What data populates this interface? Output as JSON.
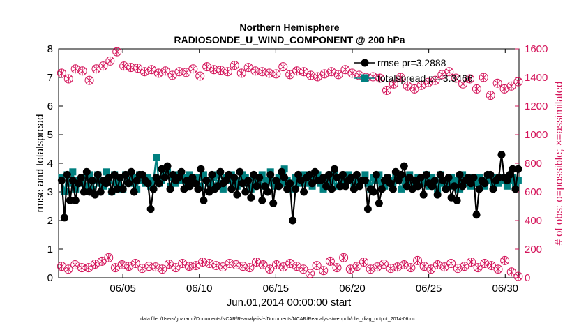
{
  "colors": {
    "rmse": "#000000",
    "spread": "#008080",
    "obs": "#d4145a"
  },
  "footer": "data file: /Users/gharamti/Documents/NCAR/Reanalysis/~/Documents/NCAR/Reanalysis/webpub/obs_diag_output_2014-06.nc",
  "chart_data": {
    "type": "line",
    "title": "Northern Hemisphere",
    "subtitle": "RADIOSONDE_U_WIND_COMPONENT @ 200 hPa",
    "xlabel": "Jun.01,2014 00:00:00 start",
    "ylabel": "rmse and totalspread",
    "y2label": "# of obs: o=possible; ×=assimilated",
    "xlim": [
      0.8,
      30.9
    ],
    "ylim": [
      0,
      8
    ],
    "y2lim": [
      0,
      1600
    ],
    "x_ticks": [
      5,
      10,
      15,
      20,
      25,
      30
    ],
    "x_tick_labels": [
      "06/05",
      "06/10",
      "06/15",
      "06/20",
      "06/25",
      "06/30"
    ],
    "y_ticks": [
      0,
      1,
      2,
      3,
      4,
      5,
      6,
      7,
      8
    ],
    "y2_ticks": [
      0,
      200,
      400,
      600,
      800,
      1000,
      1200,
      1400,
      1600
    ],
    "legend_position": "top-right",
    "series": [
      {
        "name": "rmse pr=3.2888",
        "axis": "left",
        "marker": "circle",
        "values": [
          3.4,
          2.1,
          3.6,
          2.7,
          3.4,
          2.7,
          3.3,
          3.5,
          3.0,
          3.7,
          3.0,
          3.4,
          2.9,
          3.6,
          3.0,
          3.4,
          3.3,
          3.5,
          3.0,
          3.6,
          3.1,
          3.5,
          3.1,
          3.6,
          3.3,
          3.7,
          3.0,
          3.4,
          3.6,
          3.6,
          3.4,
          3.3,
          2.4,
          3.1,
          3.5,
          3.3,
          3.8,
          3.5,
          3.9,
          3.1,
          3.6,
          3.4,
          3.5,
          3.7,
          3.1,
          3.4,
          3.2,
          3.5,
          3.3,
          3.1,
          3.8,
          2.7,
          3.4,
          3.0,
          3.6,
          3.1,
          3.2,
          3.7,
          3.3,
          3.4,
          3.6,
          3.1,
          3.5,
          2.9,
          3.7,
          3.3,
          3.0,
          3.4,
          2.8,
          3.6,
          3.2,
          3.5,
          2.7,
          3.2,
          3.0,
          3.6,
          2.6,
          3.4,
          3.2,
          3.7,
          3.5,
          3.1,
          3.3,
          2.0,
          3.1,
          3.6,
          3.4,
          3.0,
          3.5,
          3.6,
          3.3,
          3.7,
          3.4,
          3.4,
          3.5,
          3.2,
          3.6,
          3.1,
          3.8,
          3.5,
          3.2,
          3.6,
          3.2,
          3.4,
          3.5,
          3.1,
          3.6,
          3.2,
          3.4,
          3.4,
          2.4,
          3.1,
          3.0,
          3.6,
          2.6,
          3.1,
          3.4,
          3.5,
          3.3,
          3.1,
          3.7,
          3.4,
          3.6,
          3.9,
          3.2,
          3.5,
          3.1,
          3.4,
          3.2,
          3.5,
          2.9,
          3.6,
          3.3,
          3.2,
          3.4,
          2.9,
          3.6,
          3.4,
          3.1,
          3.5,
          2.8,
          3.2,
          2.7,
          3.6,
          3.2,
          3.4,
          3.5,
          3.3,
          3.5,
          2.2,
          3.1,
          3.4,
          3.3,
          3.6,
          3.6,
          3.1,
          3.4,
          3.5,
          4.3,
          3.5,
          3.4,
          3.6,
          3.8,
          3.1,
          3.8
        ]
      },
      {
        "name": "totalspread pr=3.3466",
        "axis": "left",
        "marker": "square",
        "values": [
          3.5,
          3.0,
          3.6,
          3.3,
          3.7,
          3.1,
          3.4,
          3.3,
          3.5,
          3.2,
          3.6,
          3.1,
          3.4,
          3.6,
          3.3,
          3.2,
          3.7,
          3.4,
          3.0,
          3.6,
          3.3,
          3.5,
          3.1,
          3.6,
          3.4,
          3.3,
          3.5,
          3.1,
          3.6,
          3.4,
          3.3,
          3.5,
          3.2,
          3.4,
          4.2,
          3.3,
          3.4,
          3.6,
          3.7,
          3.2,
          3.5,
          3.3,
          3.6,
          3.4,
          3.5,
          3.2,
          3.6,
          3.3,
          3.4,
          3.5,
          3.2,
          3.6,
          3.4,
          3.3,
          3.5,
          3.2,
          3.6,
          3.3,
          3.1,
          3.5,
          3.4,
          3.6,
          3.3,
          3.2,
          3.4,
          3.6,
          3.5,
          3.3,
          3.1,
          3.5,
          3.4,
          3.3,
          3.6,
          3.2,
          3.4,
          3.7,
          3.3,
          3.2,
          3.5,
          3.3,
          3.8,
          3.4,
          3.3,
          3.1,
          3.5,
          3.3,
          3.4,
          3.6,
          3.3,
          3.5,
          3.2,
          3.4,
          3.6,
          3.3,
          3.1,
          3.5,
          3.3,
          3.4,
          3.6,
          3.2,
          3.5,
          3.4,
          3.3,
          3.6,
          3.4,
          3.2,
          3.5,
          3.3,
          3.4,
          3.6,
          3.3,
          3.1,
          3.5,
          3.4,
          3.6,
          3.3,
          3.2,
          3.5,
          3.4,
          3.3,
          3.6,
          3.4,
          3.1,
          3.5,
          3.3,
          3.6,
          3.4,
          3.2,
          3.5,
          3.3,
          3.4,
          3.6,
          3.2,
          3.5,
          3.4,
          3.1,
          3.6,
          3.3,
          3.4,
          3.2,
          3.5,
          3.3,
          3.4,
          3.1,
          3.6,
          3.3,
          3.5,
          3.2,
          3.4,
          3.3,
          3.5,
          3.4,
          3.2,
          3.5,
          3.4,
          3.2,
          3.5,
          3.3,
          3.4,
          3.5,
          3.2,
          3.4,
          3.5,
          3.3,
          3.4
        ]
      },
      {
        "name": "possible",
        "axis": "right",
        "marker": "circle-open",
        "values": [
          1430,
          1390,
          1460,
          1445,
          1380,
          1460,
          1480,
          1515,
          1580,
          1480,
          1470,
          1465,
          1440,
          1455,
          1430,
          1445,
          1415,
          1440,
          1435,
          1460,
          1410,
          1475,
          1455,
          1450,
          1440,
          1485,
          1430,
          1470,
          1445,
          1440,
          1430,
          1425,
          1475,
          1420,
          1445,
          1440,
          1415,
          1405,
          1425,
          1440,
          1420,
          1455,
          1430,
          1415,
          1400,
          1405,
          1395,
          1310,
          1355,
          1400,
          1340,
          1320,
          1345,
          1365,
          1380,
          1420,
          1440,
          1395,
          1355,
          1390,
          1320,
          1400,
          1275,
          1360,
          1320,
          1340,
          1370
        ]
      },
      {
        "name": "assimilated",
        "axis": "right",
        "marker": "x",
        "values": [
          1430,
          1390,
          1460,
          1445,
          1380,
          1460,
          1480,
          1515,
          1580,
          1480,
          1470,
          1465,
          1440,
          1455,
          1430,
          1445,
          1415,
          1440,
          1435,
          1460,
          1410,
          1475,
          1455,
          1450,
          1440,
          1485,
          1430,
          1470,
          1445,
          1440,
          1430,
          1425,
          1475,
          1420,
          1445,
          1440,
          1415,
          1405,
          1425,
          1440,
          1420,
          1455,
          1430,
          1415,
          1400,
          1405,
          1395,
          1310,
          1355,
          1400,
          1340,
          1320,
          1345,
          1365,
          1380,
          1420,
          1440,
          1395,
          1355,
          1390,
          1320,
          1400,
          1275,
          1360,
          1320,
          1340,
          1370
        ]
      },
      {
        "name": "possible (rmse)",
        "axis": "right",
        "marker": "circle-open",
        "values": [
          80,
          60,
          90,
          70,
          70,
          95,
          115,
          140,
          70,
          90,
          80,
          100,
          65,
          80,
          75,
          60,
          95,
          70,
          100,
          80,
          85,
          110,
          100,
          85,
          75,
          100,
          90,
          80,
          70,
          110,
          90,
          60,
          90,
          75,
          100,
          80,
          60,
          30,
          85,
          50,
          115,
          70,
          140,
          60,
          80,
          110,
          60,
          75,
          95,
          65,
          75,
          90,
          70,
          120,
          80,
          60,
          90,
          75,
          100,
          65,
          80,
          110,
          70,
          100,
          85,
          60,
          120,
          40,
          10
        ]
      },
      {
        "name": "assimilated (rmse)",
        "axis": "right",
        "marker": "x",
        "values": [
          80,
          60,
          90,
          70,
          70,
          95,
          115,
          140,
          70,
          90,
          80,
          100,
          65,
          80,
          75,
          60,
          95,
          70,
          100,
          80,
          85,
          110,
          100,
          85,
          75,
          100,
          90,
          80,
          70,
          110,
          90,
          60,
          90,
          75,
          100,
          80,
          60,
          30,
          85,
          50,
          115,
          70,
          140,
          60,
          80,
          110,
          60,
          75,
          95,
          65,
          75,
          90,
          70,
          120,
          80,
          60,
          90,
          75,
          100,
          65,
          80,
          110,
          70,
          100,
          85,
          60,
          120,
          40,
          10
        ]
      }
    ]
  }
}
